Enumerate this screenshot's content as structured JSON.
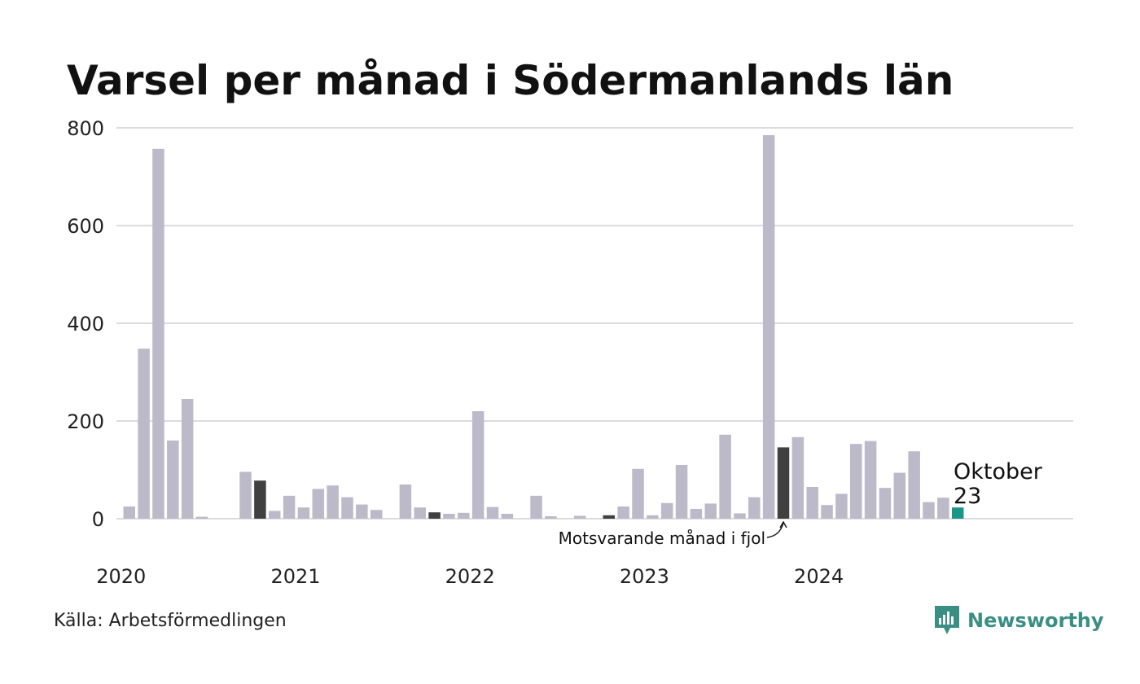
{
  "title": "Varsel per månad i Södermanlands län",
  "source": "Källa: Arbetsförmedlingen",
  "brand": "Newsworthy",
  "colors": {
    "bar": "#bcbac9",
    "highlight": "#404040",
    "current": "#1a9688",
    "grid": "#dcdcdc",
    "brand": "#3a8f85"
  },
  "chart_data": {
    "type": "bar",
    "title": "Varsel per månad i Södermanlands län",
    "xlabel": "",
    "ylabel": "",
    "ylim": [
      0,
      800
    ],
    "yticks": [
      0,
      200,
      400,
      600,
      800
    ],
    "year_labels": [
      "2020",
      "2021",
      "2022",
      "2023",
      "2024"
    ],
    "grid": true,
    "x": [
      "2020-01",
      "2020-02",
      "2020-03",
      "2020-04",
      "2020-05",
      "2020-06",
      "2020-07",
      "2020-08",
      "2020-09",
      "2020-10",
      "2020-11",
      "2020-12",
      "2021-01",
      "2021-02",
      "2021-03",
      "2021-04",
      "2021-05",
      "2021-06",
      "2021-07",
      "2021-08",
      "2021-09",
      "2021-10",
      "2021-11",
      "2021-12",
      "2022-01",
      "2022-02",
      "2022-03",
      "2022-04",
      "2022-05",
      "2022-06",
      "2022-07",
      "2022-08",
      "2022-09",
      "2022-10",
      "2022-11",
      "2022-12",
      "2023-01",
      "2023-02",
      "2023-03",
      "2023-04",
      "2023-05",
      "2023-06",
      "2023-07",
      "2023-08",
      "2023-09",
      "2023-10",
      "2023-11",
      "2023-12",
      "2024-01",
      "2024-02",
      "2024-03",
      "2024-04",
      "2024-05",
      "2024-06",
      "2024-07",
      "2024-08",
      "2024-09",
      "2024-10"
    ],
    "values": [
      25,
      348,
      757,
      160,
      245,
      4,
      0,
      0,
      96,
      78,
      16,
      47,
      23,
      61,
      68,
      44,
      29,
      18,
      0,
      70,
      23,
      13,
      10,
      12,
      220,
      24,
      10,
      0,
      47,
      5,
      0,
      6,
      0,
      7,
      25,
      102,
      7,
      32,
      110,
      20,
      31,
      172,
      11,
      44,
      785,
      146,
      167,
      65,
      28,
      51,
      153,
      159,
      63,
      94,
      138,
      34,
      43,
      23
    ],
    "highlight_months": [
      "2020-10",
      "2021-10",
      "2022-10",
      "2023-10"
    ],
    "current_month": "2024-10",
    "current_label_month": "Oktober",
    "current_label_value": "23",
    "annotation": "Motsvarande månad i fjol"
  }
}
